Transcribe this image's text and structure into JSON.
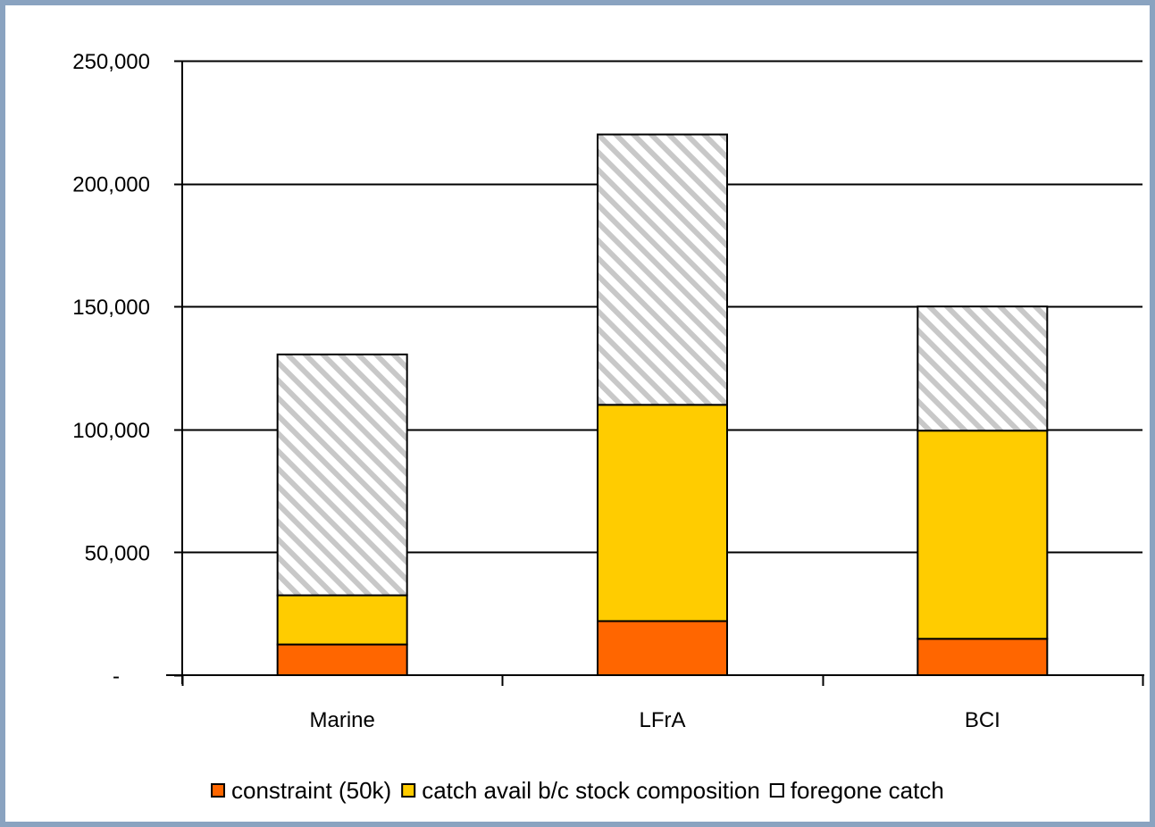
{
  "chart_data": {
    "type": "bar",
    "stacked": true,
    "categories": [
      "Marine",
      "LFrA",
      "BCI"
    ],
    "series": [
      {
        "name": "constraint (50k)",
        "values": [
          12500,
          22000,
          14800
        ],
        "color": "#ff6600",
        "pattern": "solid"
      },
      {
        "name": "catch avail b/c stock composition",
        "values": [
          20000,
          88000,
          84700
        ],
        "color": "#ffcc00",
        "pattern": "solid"
      },
      {
        "name": "foregone catch",
        "values": [
          98000,
          110000,
          50500
        ],
        "color": "#c0c0c0",
        "pattern": "diagonal-hatch"
      }
    ],
    "title": "",
    "xlabel": "",
    "ylabel": "",
    "ylim": [
      0,
      250000
    ],
    "yticks": [
      0,
      50000,
      100000,
      150000,
      200000,
      250000
    ],
    "ytick_labels": [
      "-",
      "50,000",
      "100,000",
      "150,000",
      "200,000",
      "250,000"
    ],
    "grid": true,
    "legend_position": "bottom",
    "frame_color": "#8aa3c0"
  }
}
